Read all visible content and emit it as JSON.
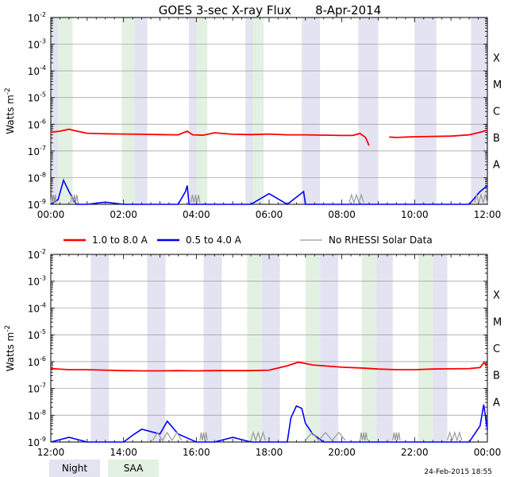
{
  "title": "GOES 3-sec X-ray Flux",
  "date": "8-Apr-2014",
  "footer_timestamp": "24-Feb-2015 18:55",
  "colors": {
    "long": "#ff0000",
    "short": "#0000ff",
    "no_rhessi": "#999999",
    "night": "#e3e3f1",
    "saa": "#e2f1e2",
    "grid": "#999999"
  },
  "legend": [
    {
      "label": "1.0 to 8.0 A",
      "color": "#ff0000"
    },
    {
      "label": "0.5 to 4.0 A",
      "color": "#0000ff"
    },
    {
      "label": "No RHESSI Solar Data",
      "color": "#999999"
    }
  ],
  "shade_legend": [
    {
      "label": "Night",
      "color": "#e3e3f1"
    },
    {
      "label": "SAA",
      "color": "#e2f1e2"
    }
  ],
  "chart_data": [
    {
      "type": "line",
      "title": "GOES 3-sec X-ray Flux 8-Apr-2014",
      "ylabel": "Watts m^-2",
      "yscale": "log",
      "ylim": [
        1e-09,
        0.01
      ],
      "xlim": [
        0,
        12
      ],
      "x_unit": "hour",
      "y_ticks": [
        {
          "v": -9,
          "label": "10",
          "exp": "-9"
        },
        {
          "v": -8,
          "label": "10",
          "exp": "-8"
        },
        {
          "v": -7,
          "label": "10",
          "exp": "-7"
        },
        {
          "v": -6,
          "label": "10",
          "exp": "-6"
        },
        {
          "v": -5,
          "label": "10",
          "exp": "-5"
        },
        {
          "v": -4,
          "label": "10",
          "exp": "-4"
        },
        {
          "v": -3,
          "label": "10",
          "exp": "-3"
        },
        {
          "v": -2,
          "label": "10",
          "exp": "-2"
        }
      ],
      "x_ticks": [
        {
          "v": 0,
          "label": "00:00"
        },
        {
          "v": 2,
          "label": "02:00"
        },
        {
          "v": 4,
          "label": "04:00"
        },
        {
          "v": 6,
          "label": "06:00"
        },
        {
          "v": 8,
          "label": "08:00"
        },
        {
          "v": 10,
          "label": "10:00"
        },
        {
          "v": 12,
          "label": "12:00"
        }
      ],
      "flare_classes": [
        {
          "label": "A",
          "level": -7.5
        },
        {
          "label": "B",
          "level": -6.5
        },
        {
          "label": "C",
          "level": -5.5
        },
        {
          "label": "M",
          "level": -4.5
        },
        {
          "label": "X",
          "level": -3.5
        }
      ],
      "night_intervals": [
        [
          0,
          0.55
        ],
        [
          2.3,
          2.65
        ],
        [
          3.8,
          4.3
        ],
        [
          5.35,
          5.85
        ],
        [
          6.9,
          7.4
        ],
        [
          8.45,
          9.0
        ],
        [
          10.0,
          10.6
        ],
        [
          11.55,
          12.0
        ]
      ],
      "saa_intervals": [
        [
          0.2,
          0.6
        ],
        [
          1.95,
          2.3
        ],
        [
          4.0,
          4.3
        ],
        [
          5.55,
          5.85
        ]
      ],
      "no_rhessi_intervals": [
        [
          0.0,
          0.15
        ],
        [
          0.55,
          0.75
        ],
        [
          3.85,
          4.1
        ],
        [
          8.2,
          8.6
        ],
        [
          11.65,
          12.0
        ]
      ],
      "series": [
        {
          "name": "1.0 to 8.0 A",
          "color": "#ff0000",
          "x": [
            0,
            0.25,
            0.5,
            0.65,
            0.8,
            1.0,
            1.5,
            2.0,
            2.5,
            3.0,
            3.5,
            3.75,
            3.9,
            4.2,
            4.5,
            5.0,
            5.5,
            6.0,
            6.5,
            7.0,
            7.5,
            8.0,
            8.3,
            8.5,
            8.65,
            8.75,
            null,
            9.3,
            9.5,
            10.0,
            10.5,
            11.0,
            11.5,
            11.8,
            12.0
          ],
          "values": [
            5e-07,
            5.5e-07,
            6.5e-07,
            5.8e-07,
            5.2e-07,
            4.6e-07,
            4.4e-07,
            4.3e-07,
            4.2e-07,
            4.1e-07,
            4e-07,
            5.5e-07,
            4e-07,
            3.9e-07,
            4.8e-07,
            4.2e-07,
            4.1e-07,
            4.3e-07,
            4e-07,
            4e-07,
            3.9e-07,
            3.8e-07,
            3.8e-07,
            4.5e-07,
            3.2e-07,
            1.6e-07,
            null,
            3.3e-07,
            3.2e-07,
            3.4e-07,
            3.5e-07,
            3.6e-07,
            4e-07,
            5e-07,
            6e-07
          ]
        },
        {
          "name": "0.5 to 4.0 A",
          "color": "#0000ff",
          "x": [
            0,
            0.2,
            0.35,
            0.5,
            0.7,
            1.0,
            1.5,
            2.0,
            2.5,
            3.0,
            3.5,
            3.7,
            3.75,
            3.8,
            4.5,
            5.0,
            5.5,
            6.0,
            6.5,
            6.95,
            7.0,
            7.5,
            8.0,
            8.5,
            9.0,
            9.5,
            10.0,
            10.5,
            11.0,
            11.5,
            11.8,
            12.0
          ],
          "values": [
            1e-09,
            1.5e-09,
            8e-09,
            3e-09,
            1e-09,
            1e-09,
            1.2e-09,
            1e-09,
            1e-09,
            1e-09,
            1e-09,
            3e-09,
            5e-09,
            1e-09,
            1e-09,
            1e-09,
            1e-09,
            2.5e-09,
            1e-09,
            3e-09,
            1e-09,
            1e-09,
            1e-09,
            1e-09,
            1e-09,
            1e-09,
            1e-09,
            1e-09,
            1e-09,
            1e-09,
            3e-09,
            5e-09
          ]
        }
      ]
    },
    {
      "type": "line",
      "ylabel": "Watts m^-2",
      "yscale": "log",
      "ylim": [
        1e-09,
        0.01
      ],
      "xlim": [
        12,
        24
      ],
      "x_unit": "hour",
      "y_ticks": [
        {
          "v": -9,
          "label": "10",
          "exp": "-9"
        },
        {
          "v": -8,
          "label": "10",
          "exp": "-8"
        },
        {
          "v": -7,
          "label": "10",
          "exp": "-7"
        },
        {
          "v": -6,
          "label": "10",
          "exp": "-6"
        },
        {
          "v": -5,
          "label": "10",
          "exp": "-5"
        },
        {
          "v": -4,
          "label": "10",
          "exp": "-4"
        },
        {
          "v": -3,
          "label": "10",
          "exp": "-3"
        },
        {
          "v": -2,
          "label": "10",
          "exp": "-2"
        }
      ],
      "x_ticks": [
        {
          "v": 12,
          "label": "12:00"
        },
        {
          "v": 14,
          "label": "14:00"
        },
        {
          "v": 16,
          "label": "16:00"
        },
        {
          "v": 18,
          "label": "18:00"
        },
        {
          "v": 20,
          "label": "20:00"
        },
        {
          "v": 22,
          "label": "22:00"
        },
        {
          "v": 24,
          "label": "00:00"
        }
      ],
      "flare_classes": [
        {
          "label": "A",
          "level": -7.5
        },
        {
          "label": "B",
          "level": -6.5
        },
        {
          "label": "C",
          "level": -5.5
        },
        {
          "label": "M",
          "level": -4.5
        },
        {
          "label": "X",
          "level": -3.5
        }
      ],
      "night_intervals": [
        [
          13.1,
          13.6
        ],
        [
          14.65,
          15.15
        ],
        [
          16.2,
          16.7
        ],
        [
          17.8,
          18.3
        ],
        [
          19.4,
          19.9
        ],
        [
          20.95,
          21.4
        ],
        [
          22.5,
          22.9
        ]
      ],
      "saa_intervals": [
        [
          17.4,
          17.8
        ],
        [
          19.0,
          19.4
        ],
        [
          20.55,
          20.95
        ],
        [
          22.1,
          22.5
        ]
      ],
      "no_rhessi_intervals": [
        [
          14.8,
          15.6
        ],
        [
          16.1,
          16.3
        ],
        [
          17.5,
          17.9
        ],
        [
          19.0,
          20.1
        ],
        [
          20.5,
          20.7
        ],
        [
          21.4,
          21.6
        ],
        [
          22.9,
          23.3
        ]
      ],
      "series": [
        {
          "name": "1.0 to 8.0 A",
          "color": "#ff0000",
          "x": [
            12,
            12.5,
            13.0,
            13.5,
            14.0,
            14.5,
            15.0,
            15.5,
            16.0,
            16.5,
            17.0,
            17.5,
            18.0,
            18.5,
            18.8,
            19.0,
            19.2,
            19.5,
            20.0,
            20.5,
            21.0,
            21.5,
            22.0,
            22.5,
            23.0,
            23.5,
            23.8,
            23.9,
            24.0
          ],
          "values": [
            5.5e-07,
            5e-07,
            5e-07,
            4.8e-07,
            4.6e-07,
            4.5e-07,
            4.5e-07,
            4.6e-07,
            4.5e-07,
            4.6e-07,
            4.6e-07,
            4.6e-07,
            4.8e-07,
            7e-07,
            9.5e-07,
            8.5e-07,
            7.5e-07,
            7e-07,
            6.2e-07,
            5.8e-07,
            5.3e-07,
            5e-07,
            5e-07,
            5.3e-07,
            5.4e-07,
            5.5e-07,
            6e-07,
            9e-07,
            7e-07
          ]
        },
        {
          "name": "0.5 to 4.0 A",
          "color": "#0000ff",
          "x": [
            12,
            12.5,
            13.0,
            13.5,
            14.0,
            14.3,
            14.5,
            15.0,
            15.2,
            15.5,
            16.0,
            16.5,
            17.0,
            17.5,
            18.0,
            18.5,
            18.6,
            18.75,
            18.9,
            19.0,
            19.2,
            19.5,
            20.0,
            20.5,
            21.0,
            21.5,
            22.0,
            22.5,
            23.0,
            23.5,
            23.8,
            23.9,
            24.0
          ],
          "values": [
            1e-09,
            1.5e-09,
            1e-09,
            1e-09,
            1e-09,
            2e-09,
            3e-09,
            2e-09,
            6e-09,
            2e-09,
            1e-09,
            1e-09,
            1.5e-09,
            1e-09,
            1e-09,
            1e-09,
            8e-09,
            2.2e-08,
            1.8e-08,
            5e-09,
            2e-09,
            1e-09,
            1e-09,
            1e-09,
            1e-09,
            1e-09,
            1e-09,
            1e-09,
            1e-09,
            1e-09,
            4e-09,
            2.5e-08,
            3e-09
          ]
        }
      ]
    }
  ]
}
